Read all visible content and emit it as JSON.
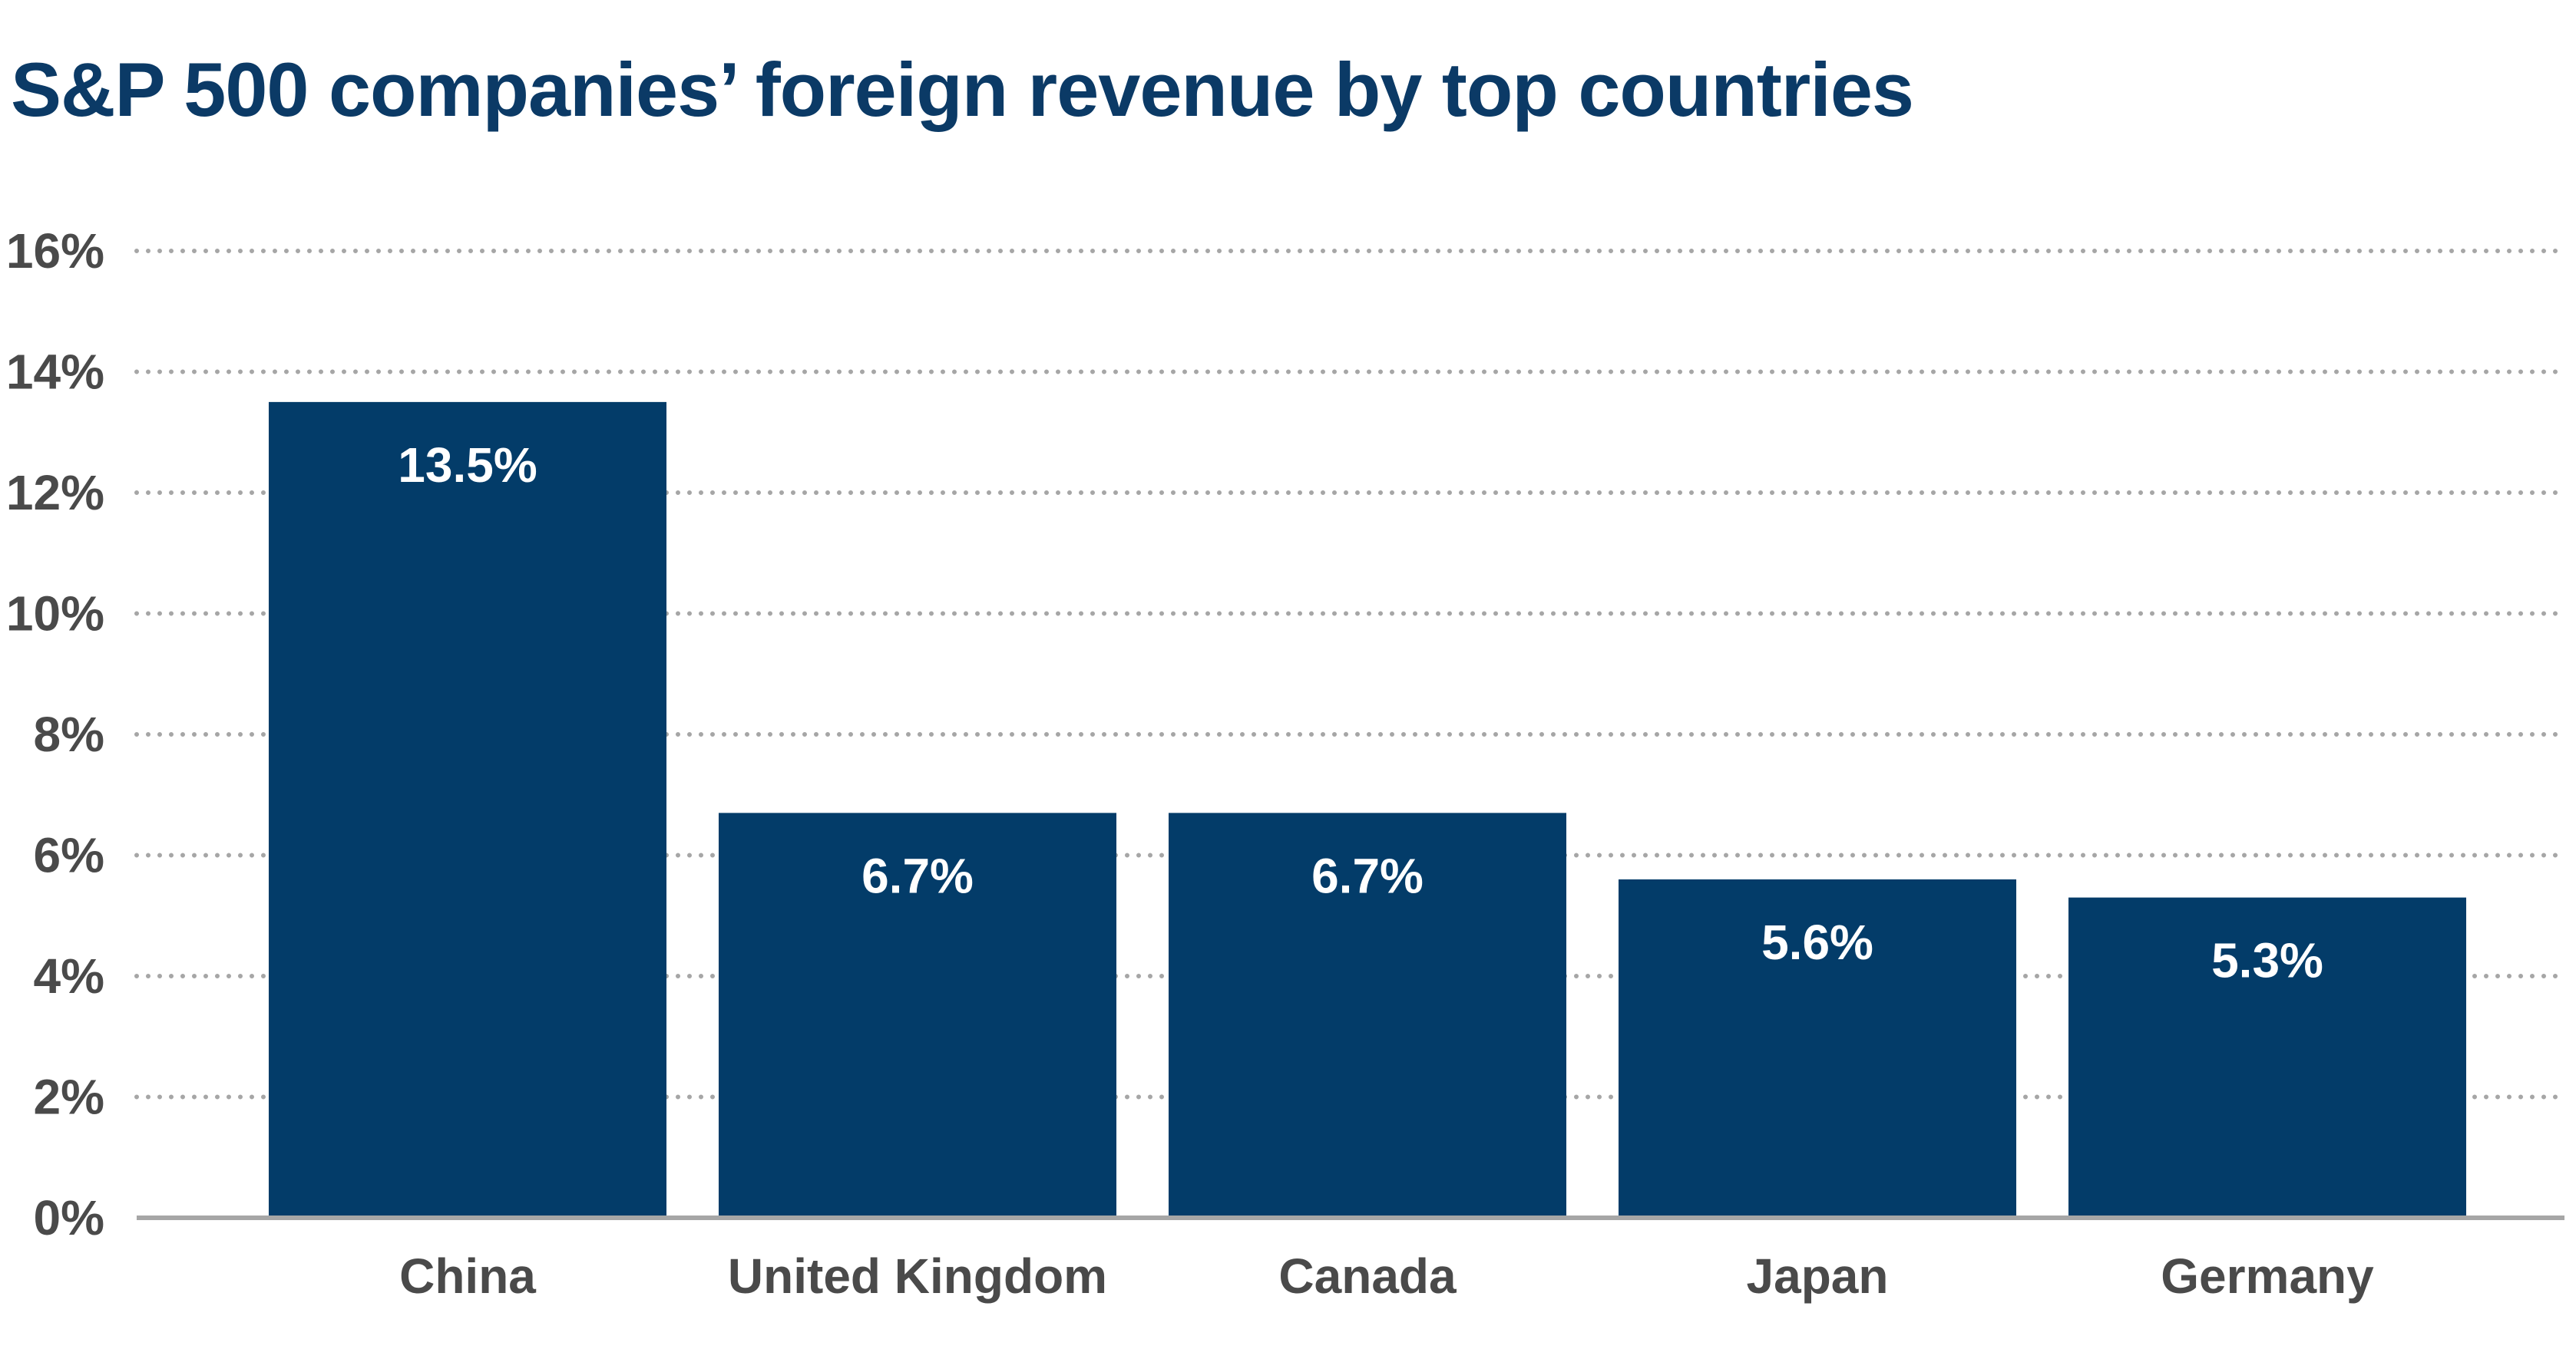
{
  "chart_data": {
    "type": "bar",
    "title": "S&P 500 companies’ foreign revenue by top countries",
    "xlabel": "",
    "ylabel": "",
    "categories": [
      "China",
      "United Kingdom",
      "Canada",
      "Japan",
      "Germany"
    ],
    "values": [
      13.5,
      6.7,
      6.7,
      5.6,
      5.3
    ],
    "data_labels": [
      "13.5%",
      "6.7%",
      "6.7%",
      "5.6%",
      "5.3%"
    ],
    "ylim": [
      0,
      16
    ],
    "yticks": [
      0,
      2,
      4,
      6,
      8,
      10,
      12,
      14,
      16
    ],
    "ytick_labels": [
      "0%",
      "2%",
      "4%",
      "6%",
      "8%",
      "10%",
      "12%",
      "14%",
      "16%"
    ],
    "grid": true,
    "grid_style": "dotted",
    "legend": "none",
    "colors": {
      "bar": "#033c69",
      "title": "#0b3a66",
      "axis_text": "#4a4a4a",
      "grid": "#a6a6a6",
      "baseline": "#a6a6a6"
    }
  }
}
